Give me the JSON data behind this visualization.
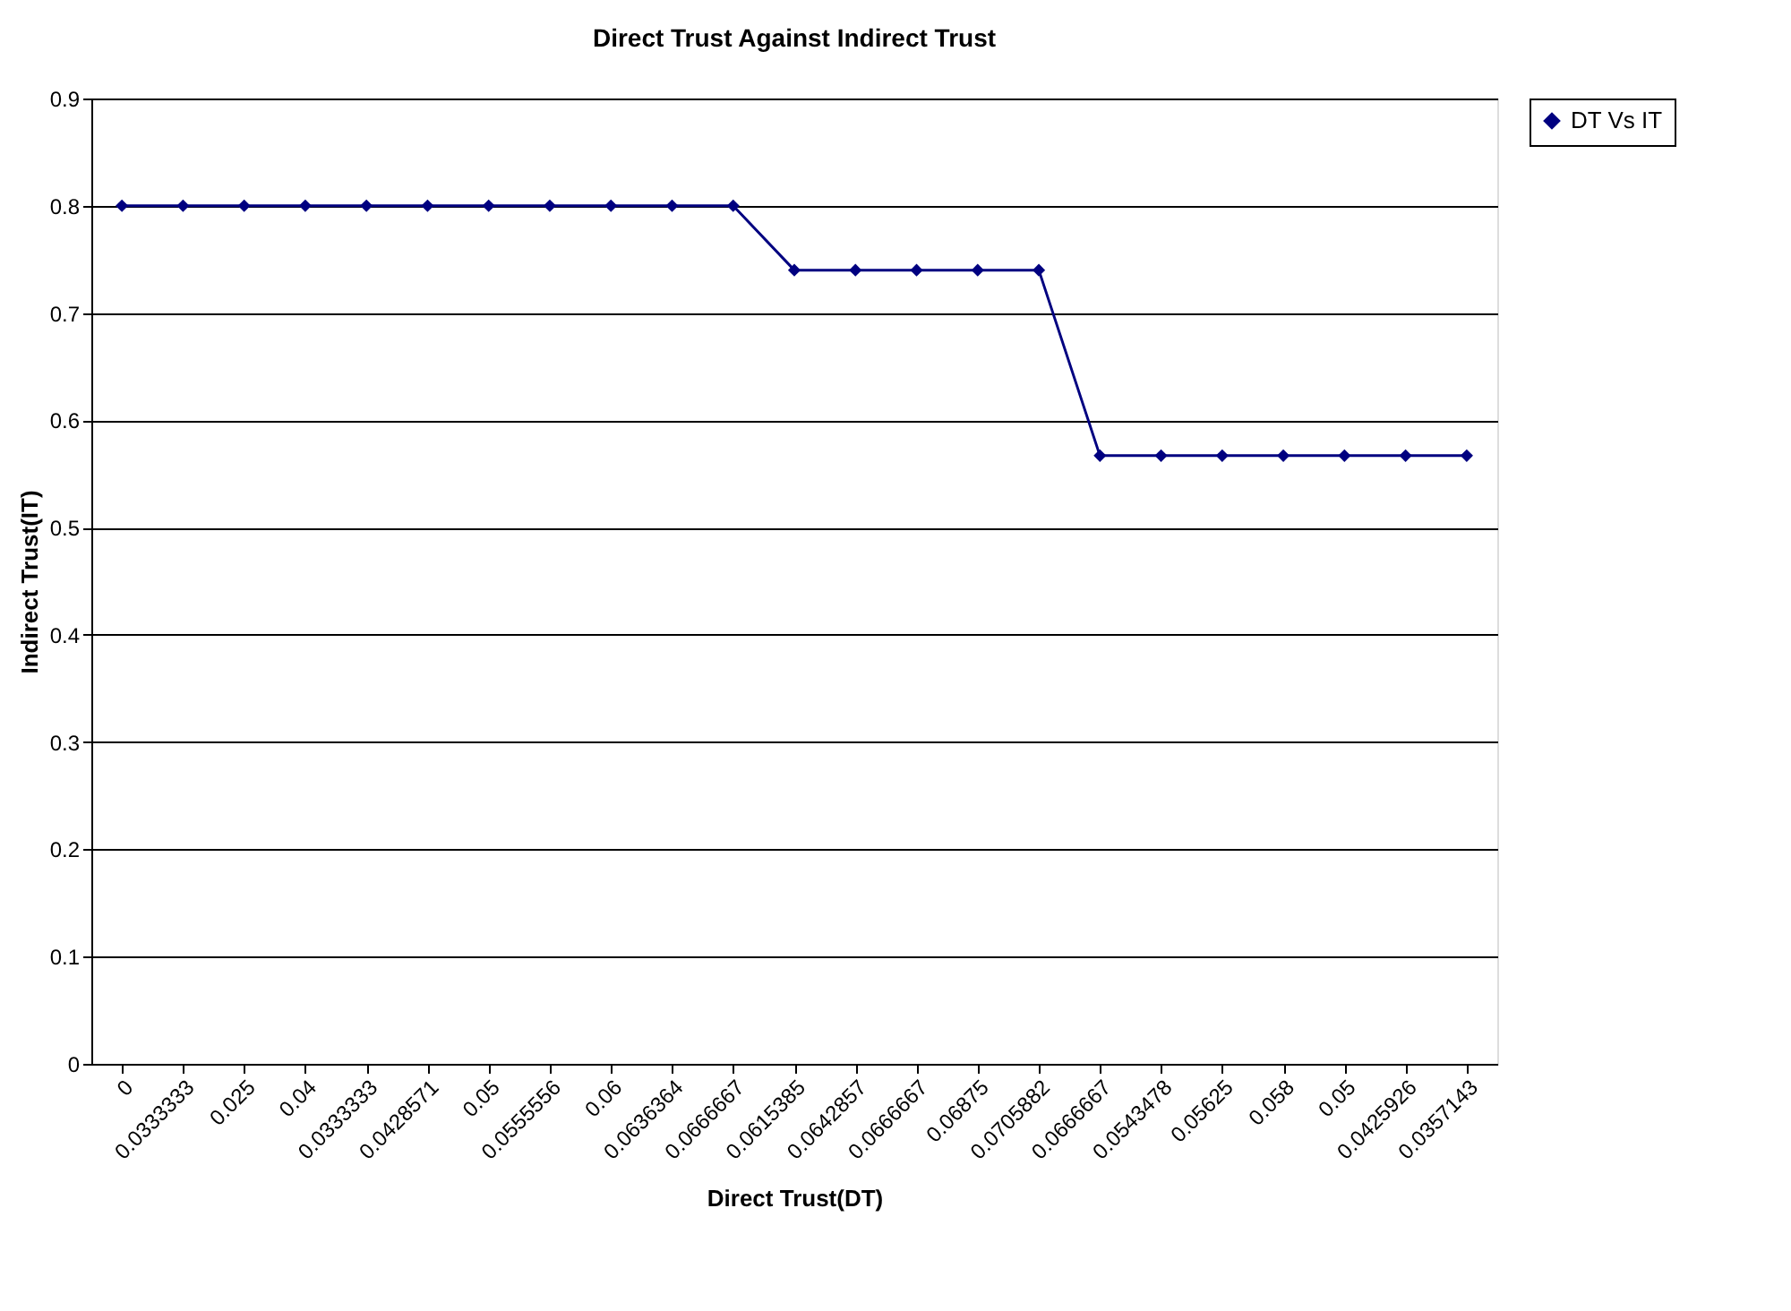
{
  "chart_data": {
    "type": "line",
    "title": "Direct Trust Against Indirect Trust",
    "xlabel": "Direct Trust(DT)",
    "ylabel": "Indirect Trust(IT)",
    "categories": [
      "0",
      "0.0333333",
      "0.025",
      "0.04",
      "0.0333333",
      "0.0428571",
      "0.05",
      "0.0555556",
      "0.06",
      "0.0636364",
      "0.0666667",
      "0.0615385",
      "0.0642857",
      "0.0666667",
      "0.06875",
      "0.0705882",
      "0.0666667",
      "0.0543478",
      "0.05625",
      "0.058",
      "0.05",
      "0.0425926",
      "0.0357143"
    ],
    "series": [
      {
        "name": "DT Vs IT",
        "color": "#000080",
        "values": [
          0.8,
          0.8,
          0.8,
          0.8,
          0.8,
          0.8,
          0.8,
          0.8,
          0.8,
          0.8,
          0.8,
          0.74,
          0.74,
          0.74,
          0.74,
          0.74,
          0.567,
          0.567,
          0.567,
          0.567,
          0.567,
          0.567,
          0.567
        ]
      }
    ],
    "ylim": [
      0,
      0.9
    ],
    "yticks": [
      0,
      0.1,
      0.2,
      0.3,
      0.4,
      0.5,
      0.6,
      0.7,
      0.8,
      0.9
    ],
    "grid": "y",
    "legend": "right",
    "marker": "diamond",
    "line_style": "solid"
  }
}
